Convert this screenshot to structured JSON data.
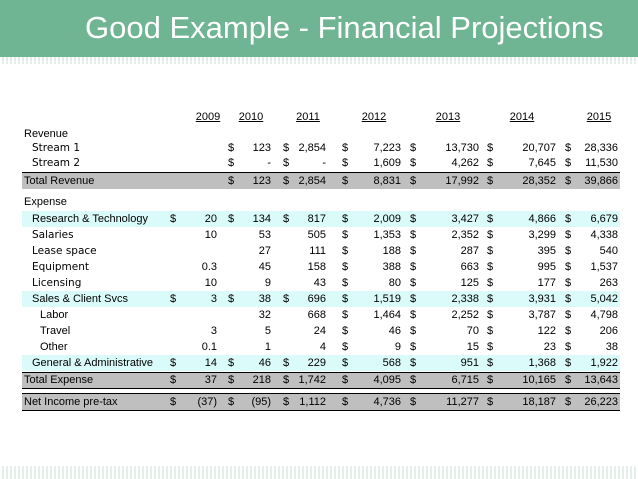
{
  "title": "Good Example - Financial Projections",
  "years": [
    "2009",
    "2010",
    "2011",
    "2012",
    "2013",
    "2014",
    "2015"
  ],
  "sections": {
    "revenue": "Revenue",
    "expense": "Expense"
  },
  "rows": {
    "stream1": {
      "label": "Stream 1",
      "cells": [
        "",
        "$|123",
        "$|2,854",
        "$|7,223",
        "$|13,730",
        "$|20,707",
        "$|28,336"
      ]
    },
    "stream2": {
      "label": "Stream 2",
      "cells": [
        "",
        "$|-",
        "$|-",
        "$|1,609",
        "$|4,262",
        "$|7,645",
        "$|11,530"
      ]
    },
    "total_revenue": {
      "label": "Total Revenue",
      "cells": [
        "",
        "$|123",
        "$|2,854",
        "$|8,831",
        "$|17,992",
        "$|28,352",
        "$|39,866"
      ]
    },
    "rnd": {
      "label": "Research & Technology",
      "cells": [
        "$|20",
        "$|134",
        "$|817",
        "$|2,009",
        "$|3,427",
        "$|4,866",
        "$|6,679"
      ]
    },
    "salaries": {
      "label": "Salaries",
      "cells": [
        "|10",
        "|53",
        "|505",
        "$|1,353",
        "$|2,352",
        "$|3,299",
        "$|4,338"
      ]
    },
    "lease": {
      "label": "Lease space",
      "cells": [
        "",
        "|27",
        "|111",
        "$|188",
        "$|287",
        "$|395",
        "$|540"
      ]
    },
    "equipment": {
      "label": "Equipment",
      "cells": [
        "|0.3",
        "|45",
        "|158",
        "$|388",
        "$|663",
        "$|995",
        "$|1,537"
      ]
    },
    "licensing": {
      "label": "Licensing",
      "cells": [
        "|10",
        "|9",
        "|43",
        "$|80",
        "$|125",
        "$|177",
        "$|263"
      ]
    },
    "sales": {
      "label": "Sales & Client Svcs",
      "cells": [
        "$|3",
        "$|38",
        "$|696",
        "$|1,519",
        "$|2,338",
        "$|3,931",
        "$|5,042"
      ]
    },
    "labor": {
      "label": "Labor",
      "cells": [
        "",
        "|32",
        "|668",
        "$|1,464",
        "$|2,252",
        "$|3,787",
        "$|4,798"
      ]
    },
    "travel": {
      "label": "Travel",
      "cells": [
        "|3",
        "|5",
        "|24",
        "$|46",
        "$|70",
        "$|122",
        "$|206"
      ]
    },
    "other": {
      "label": "Other",
      "cells": [
        "|0.1",
        "|1",
        "|4",
        "$|9",
        "$|15",
        "$|23",
        "$|38"
      ]
    },
    "gna": {
      "label": "General & Administrative",
      "cells": [
        "$|14",
        "$|46",
        "$|229",
        "$|568",
        "$|951",
        "$|1,368",
        "$|1,922"
      ]
    },
    "total_expense": {
      "label": "Total Expense",
      "cells": [
        "$|37",
        "$|218",
        "$|1,742",
        "$|4,095",
        "$|6,715",
        "$|10,165",
        "$|13,643"
      ]
    },
    "net_income": {
      "label": "Net Income pre-tax",
      "cells": [
        "$|(37)",
        "$|(95)",
        "$|1,112",
        "$|4,736",
        "$|11,277",
        "$|18,187",
        "$|26,223"
      ]
    }
  },
  "colors": {
    "banner": "#6fb594",
    "highlight_gray": "#bfbfbf",
    "highlight_cyan": "#dbfbfb"
  }
}
